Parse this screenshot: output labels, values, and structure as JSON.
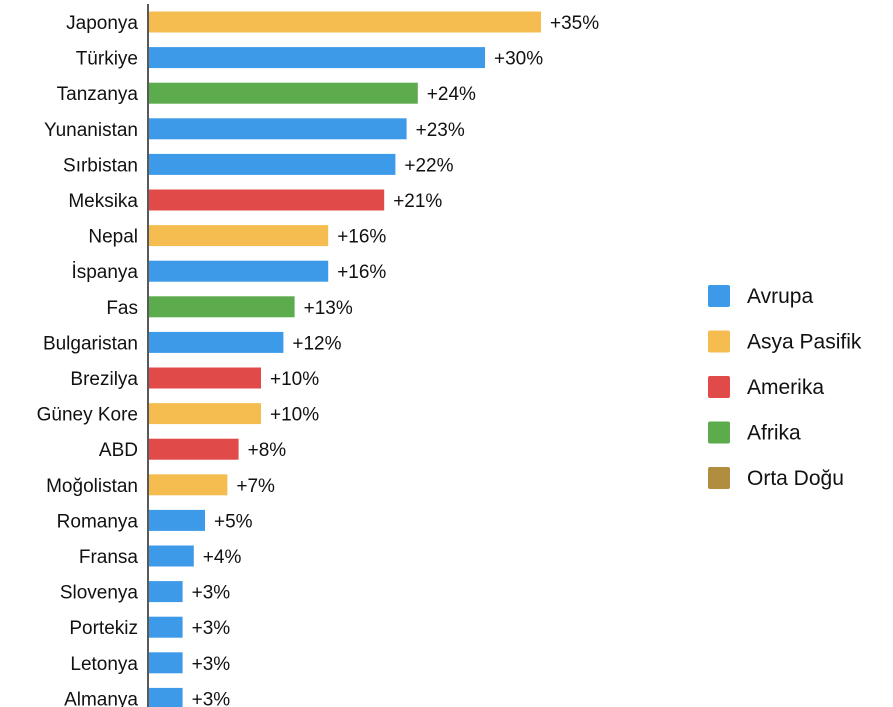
{
  "chart_data": {
    "type": "bar",
    "orientation": "horizontal",
    "categories": [
      "Japonya",
      "Türkiye",
      "Tanzanya",
      "Yunanistan",
      "Sırbistan",
      "Meksika",
      "Nepal",
      "İspanya",
      "Fas",
      "Bulgaristan",
      "Brezilya",
      "Güney Kore",
      "ABD",
      "Moğolistan",
      "Romanya",
      "Fransa",
      "Slovenya",
      "Portekiz",
      "Letonya",
      "Almanya"
    ],
    "values": [
      35,
      30,
      24,
      23,
      22,
      21,
      16,
      16,
      13,
      12,
      10,
      10,
      8,
      7,
      5,
      4,
      3,
      3,
      3,
      3
    ],
    "value_labels": [
      "+35%",
      "+30%",
      "+24%",
      "+23%",
      "+22%",
      "+21%",
      "+16%",
      "+16%",
      "+13%",
      "+12%",
      "+10%",
      "+10%",
      "+8%",
      "+7%",
      "+5%",
      "+4%",
      "+3%",
      "+3%",
      "+3%",
      "+3%"
    ],
    "regions": [
      "Asya Pasifik",
      "Avrupa",
      "Afrika",
      "Avrupa",
      "Avrupa",
      "Amerika",
      "Asya Pasifik",
      "Avrupa",
      "Afrika",
      "Avrupa",
      "Amerika",
      "Asya Pasifik",
      "Amerika",
      "Asya Pasifik",
      "Avrupa",
      "Avrupa",
      "Avrupa",
      "Avrupa",
      "Avrupa",
      "Avrupa"
    ],
    "legend": [
      {
        "name": "Avrupa",
        "color": "#3d9ae8"
      },
      {
        "name": "Asya Pasifik",
        "color": "#f5bd4f"
      },
      {
        "name": "Amerika",
        "color": "#e04a48"
      },
      {
        "name": "Afrika",
        "color": "#5cab4c"
      },
      {
        "name": "Orta Doğu",
        "color": "#b08d3f"
      }
    ],
    "legend_position": "right",
    "xlim": [
      0,
      35
    ],
    "grid": false
  }
}
